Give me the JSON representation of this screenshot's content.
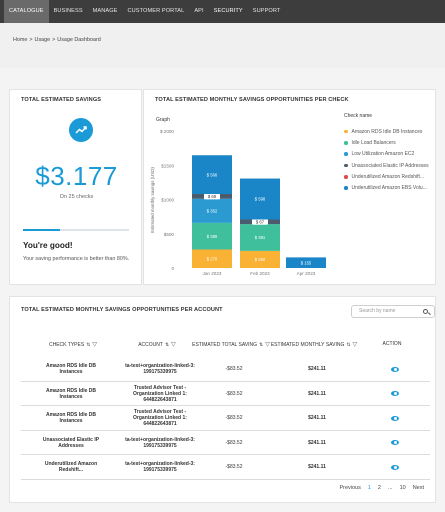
{
  "nav": {
    "items": [
      "CATALOGUE",
      "BUSINESS",
      "MANAGE",
      "CUSTOMER PORTAL",
      "API",
      "SECURITY",
      "SUPPORT"
    ]
  },
  "breadcrumb": [
    "Home",
    ">",
    "Usage",
    ">",
    "Usage Dashboard"
  ],
  "savings": {
    "title": "TOTAL ESTIMATED SAVINGS",
    "icon": "trending-up-icon",
    "amount": "$3.177",
    "subtitle": "On 25 checks",
    "progress_fraction": 0.35,
    "status": "You're good!",
    "status_text": "Your saving performance is better than 80%.",
    "accent_color": "#1a9ad6"
  },
  "chart_panel": {
    "title": "TOTAL ESTIMATED MONTHLY SAVINGS OPPORTUNITIES PER CHECK",
    "graph_label": "Graph",
    "legend_title": "Check name"
  },
  "chart_data": {
    "type": "bar",
    "stacked": true,
    "categories": [
      "Jan 2023",
      "Feb 2023",
      "Apr 2023"
    ],
    "ylabel": "Estimated monthly savings (USD)",
    "ylim": [
      0,
      2000
    ],
    "yticks": [
      0,
      500,
      1000,
      1500,
      2000
    ],
    "ytick_labels": [
      "0",
      "$500",
      "$1000",
      "$1500",
      "$ 2000"
    ],
    "series": [
      {
        "name": "Amazon RDS Idle DB Instances",
        "color": "#f9b233",
        "values": [
          270,
          250,
          0
        ],
        "labels": [
          "$ 270",
          "$ 250",
          ""
        ]
      },
      {
        "name": "Idle Load Balancers",
        "color": "#3fbf9b",
        "values": [
          389,
          391,
          0
        ],
        "labels": [
          "$ 389",
          "$ 391",
          ""
        ]
      },
      {
        "name": "Low Utilization Amazon EC2",
        "color": "#2b9ad1",
        "values": [
          352,
          0,
          0
        ],
        "labels": [
          "$ 352",
          "",
          ""
        ]
      },
      {
        "name": "Unassociated Elastic IP Addresses",
        "color": "#4a5c6d",
        "values": [
          69,
          67,
          0
        ],
        "labels": [
          "$ 69",
          "$ 67",
          ""
        ]
      },
      {
        "name": "Underutilized Amazon Redshift...",
        "color": "#e04a4a",
        "values": [
          0,
          0,
          0
        ],
        "labels": [
          "",
          "",
          ""
        ]
      },
      {
        "name": "Underutilized Amazon EBS Volu...",
        "color": "#1a86c7",
        "values": [
          566,
          598,
          155
        ],
        "labels": [
          "$ 566",
          "$ 598",
          "$ 155"
        ]
      }
    ],
    "legend_position": "right",
    "grid": false
  },
  "table": {
    "title": "TOTAL ESTIMATED MONTHLY SAVINGS OPPORTUNITIES PER ACCOUNT",
    "search_placeholder": "Search by name",
    "headers": [
      "CHECK TYPES",
      "ACCOUNT",
      "ESTIMATED TOTAL SAVING",
      "ESTIMATED MONTHLY SAVING",
      "ACTION"
    ],
    "rows": [
      {
        "check": "Amazon RDS Idle DB Instances",
        "account": "ta-test+organization-linked-3: 199175339975",
        "total": "-$83.52",
        "monthly": "$241.11"
      },
      {
        "check": "Amazon RDS Idle DB Instances",
        "account": "Trusted Advisor Test - Organization Linked 1: 644822643871",
        "total": "-$83.52",
        "monthly": "$241.11"
      },
      {
        "check": "Amazon RDS Idle DB Instances",
        "account": "Trusted Advisor Test - Organization Linked 1: 644822643871",
        "total": "-$83.52",
        "monthly": "$241.11"
      },
      {
        "check": "Unassociated Elastic IP Addresses",
        "account": "ta-test+organization-linked-3: 199175339975",
        "total": "-$83.52",
        "monthly": "$241.11"
      },
      {
        "check": "Underutilized Amazon Redshift...",
        "account": "ta-test+organization-linked-3: 199175339975",
        "total": "-$83.52",
        "monthly": "$241.11"
      }
    ],
    "action_icon": "eye-icon",
    "pagination": [
      "Previous",
      "1",
      "2",
      "...",
      "10",
      "Next"
    ]
  }
}
